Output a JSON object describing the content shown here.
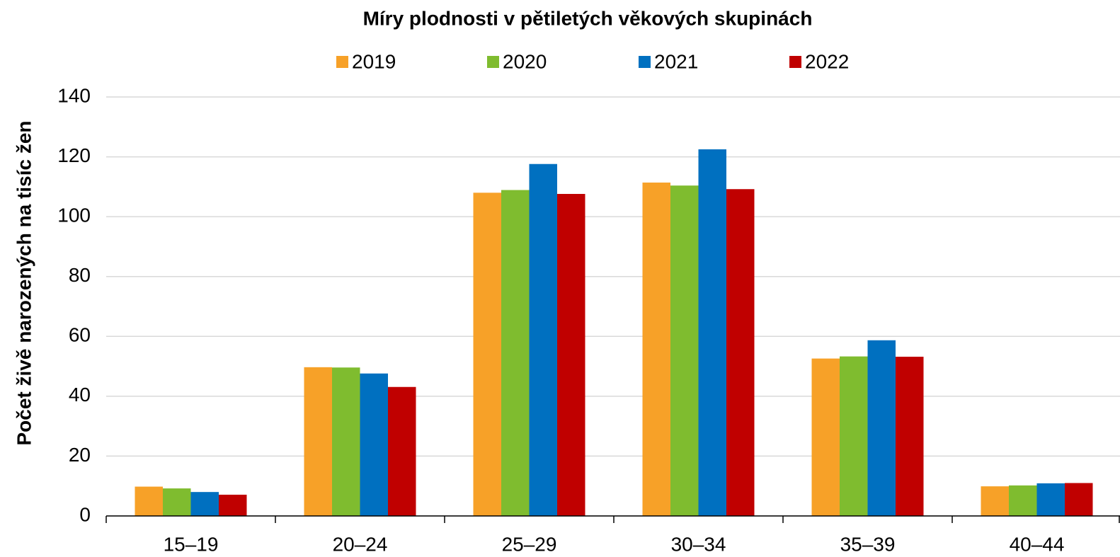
{
  "chart_data": {
    "type": "bar",
    "title": "Míry plodnosti v pětiletých věkových skupinách",
    "ylabel": "Počet živě narozených na tisíc žen",
    "categories": [
      "15–19",
      "20–24",
      "25–29",
      "30–34",
      "35–39",
      "40–44"
    ],
    "series": [
      {
        "name": "2019",
        "color": "#f7a128",
        "values": [
          9.8,
          49.7,
          108.0,
          111.4,
          52.6,
          9.9
        ]
      },
      {
        "name": "2020",
        "color": "#7fbc2f",
        "values": [
          9.2,
          49.6,
          108.9,
          110.4,
          53.3,
          10.2
        ]
      },
      {
        "name": "2021",
        "color": "#0070c0",
        "values": [
          8.0,
          47.6,
          117.6,
          122.5,
          58.7,
          10.9
        ]
      },
      {
        "name": "2022",
        "color": "#c00000",
        "values": [
          7.1,
          43.1,
          107.6,
          109.2,
          53.2,
          11.0
        ]
      }
    ],
    "ylim": [
      0,
      140
    ],
    "yticks": [
      0,
      20,
      40,
      60,
      80,
      100,
      120,
      140
    ],
    "grid": true
  }
}
